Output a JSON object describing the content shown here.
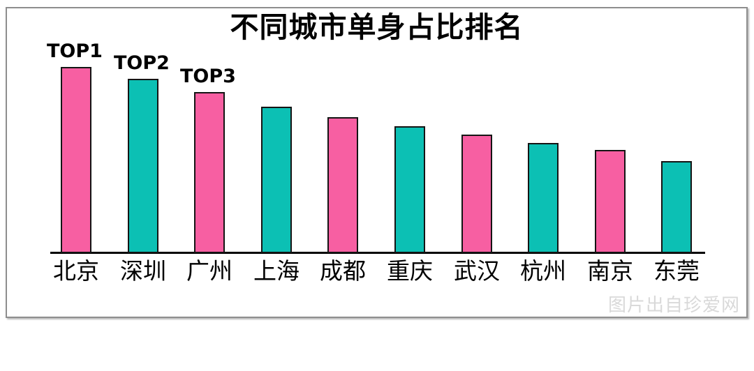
{
  "chart_data": {
    "type": "bar",
    "title": "不同城市单身占比排名",
    "categories": [
      "北京",
      "深圳",
      "广州",
      "上海",
      "成都",
      "重庆",
      "武汉",
      "杭州",
      "南京",
      "东莞"
    ],
    "values": [
      100,
      93.6,
      86.5,
      78.7,
      73.0,
      68.2,
      63.7,
      59.2,
      55.4,
      49.4
    ],
    "values_note": "relative bar heights as % of tallest bar; no numeric axis labels are shown in the image",
    "bar_labels": [
      "TOP1",
      "TOP2",
      "TOP3",
      "",
      "",
      "",
      "",
      "",
      "",
      ""
    ],
    "xlabel": "",
    "ylabel": "",
    "layout": {
      "legend": "none",
      "grid": false,
      "y_axis_ticks_visible": false,
      "x_axis_line": true
    },
    "colors": {
      "odd_bars": "#F75FA2",
      "even_bars": "#0CC0B4",
      "bar_outline": "#141414",
      "axis_line": "#000000",
      "title_text": "#000000",
      "tick_text": "#000000",
      "rank_text": "#000000"
    }
  },
  "watermark": {
    "text": "图片出自珍爱网",
    "color": "#d9d9d9"
  },
  "frame": {
    "border_color": "#8e8e8e",
    "background": "#ffffff"
  }
}
